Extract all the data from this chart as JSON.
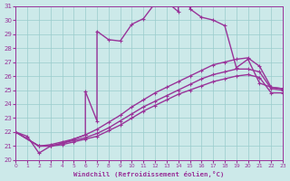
{
  "xlabel": "Windchill (Refroidissement éolien,°C)",
  "xlim": [
    0,
    23
  ],
  "ylim": [
    20,
    31
  ],
  "yticks": [
    20,
    21,
    22,
    23,
    24,
    25,
    26,
    27,
    28,
    29,
    30,
    31
  ],
  "xticks": [
    0,
    1,
    2,
    3,
    4,
    5,
    6,
    7,
    8,
    9,
    10,
    11,
    12,
    13,
    14,
    15,
    16,
    17,
    18,
    19,
    20,
    21,
    22,
    23
  ],
  "bg_color": "#cce9e9",
  "grid_color": "#99cccc",
  "line_color": "#993399",
  "series": [
    {
      "x": [
        0,
        1,
        2,
        3,
        4,
        5,
        6,
        6,
        7,
        7,
        8,
        9,
        10,
        11,
        12,
        13,
        14,
        14,
        15,
        15,
        16,
        17,
        18,
        19,
        20,
        21,
        22,
        23
      ],
      "y": [
        22.0,
        21.7,
        20.5,
        21.0,
        21.2,
        21.5,
        21.8,
        24.9,
        22.8,
        29.2,
        28.6,
        28.5,
        29.7,
        30.1,
        31.2,
        31.3,
        30.6,
        31.1,
        31.0,
        30.8,
        30.2,
        30.0,
        29.6,
        26.6,
        27.2,
        25.5,
        25.2,
        25.1
      ]
    },
    {
      "x": [
        0,
        2,
        3,
        4,
        5,
        6,
        7,
        8,
        9,
        10,
        11,
        12,
        13,
        14,
        15,
        16,
        17,
        18,
        19,
        20,
        21,
        22,
        23
      ],
      "y": [
        22.0,
        21.0,
        21.1,
        21.3,
        21.5,
        21.8,
        22.2,
        22.7,
        23.2,
        23.8,
        24.3,
        24.8,
        25.2,
        25.6,
        26.0,
        26.4,
        26.8,
        27.0,
        27.2,
        27.3,
        26.7,
        25.2,
        25.1
      ]
    },
    {
      "x": [
        0,
        2,
        3,
        4,
        5,
        6,
        7,
        8,
        9,
        10,
        11,
        12,
        13,
        14,
        15,
        16,
        17,
        18,
        19,
        20,
        21,
        22,
        23
      ],
      "y": [
        22.0,
        21.0,
        21.0,
        21.2,
        21.4,
        21.6,
        21.9,
        22.3,
        22.8,
        23.3,
        23.8,
        24.2,
        24.6,
        25.0,
        25.4,
        25.8,
        26.1,
        26.3,
        26.5,
        26.5,
        26.3,
        25.1,
        25.0
      ]
    },
    {
      "x": [
        0,
        2,
        3,
        4,
        5,
        6,
        7,
        8,
        9,
        10,
        11,
        12,
        13,
        14,
        15,
        16,
        17,
        18,
        19,
        20,
        21,
        22,
        23
      ],
      "y": [
        22.0,
        21.0,
        21.0,
        21.1,
        21.3,
        21.5,
        21.7,
        22.1,
        22.5,
        23.0,
        23.5,
        23.9,
        24.3,
        24.7,
        25.0,
        25.3,
        25.6,
        25.8,
        26.0,
        26.1,
        25.9,
        24.8,
        24.8
      ]
    }
  ]
}
